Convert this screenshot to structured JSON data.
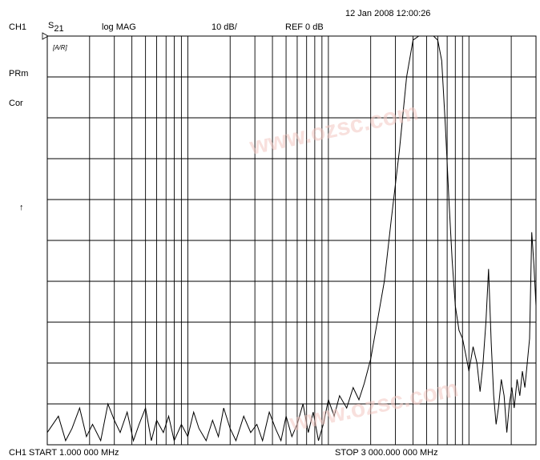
{
  "header": {
    "datetime": "12 Jan 2008  12:00:26",
    "channel": "CH1",
    "param": "S",
    "param_sub": "21",
    "format": "log MAG",
    "scale": "10 dB/",
    "reference": "REF 0 dB"
  },
  "side": {
    "prm": "PRm",
    "cor": "Cor",
    "arrow": "↑",
    "box_marker": "[A/R]"
  },
  "footer": {
    "start": "CH1 START   1.000 000 MHz",
    "stop": "STOP 3 000.000 000 MHz"
  },
  "watermark": {
    "url1": "www.ozsc.com",
    "url2": "www.ozsc.com"
  },
  "colors": {
    "trace": "#000000",
    "grid": "#000000",
    "watermark": "#e8a89e"
  },
  "chart_data": {
    "type": "line",
    "title": "",
    "xlabel": "",
    "ylabel": "",
    "x_scale": "log",
    "x_unit": "MHz",
    "xlim": [
      1,
      3000
    ],
    "ylim": [
      -100,
      0
    ],
    "y_div": 10,
    "grid": true,
    "series": [
      {
        "x": [
          1,
          1.2,
          1.35,
          1.5,
          1.7,
          1.9,
          2.1,
          2.4,
          2.7,
          3.0,
          3.3,
          3.7,
          4.1,
          4.5,
          5.0,
          5.5,
          6.0,
          6.7,
          7.3,
          8.0,
          9.0,
          10,
          11,
          12,
          13.5,
          15,
          16.5,
          18,
          20,
          22,
          25,
          28,
          31,
          34,
          38,
          42,
          46,
          50,
          55,
          60,
          66,
          72,
          78,
          85,
          92,
          100,
          110,
          120,
          135,
          150,
          165,
          180,
          200,
          220,
          250,
          280,
          320,
          360,
          400,
          440,
          480,
          520,
          560,
          600,
          640,
          680,
          720,
          760,
          800,
          850,
          900,
          950,
          1000,
          1070,
          1140,
          1200,
          1260,
          1320,
          1380,
          1440,
          1500,
          1560,
          1620,
          1700,
          1780,
          1860,
          1940,
          2020,
          2100,
          2200,
          2300,
          2400,
          2500,
          2600,
          2700,
          2800,
          2900,
          3000
        ],
        "y": [
          -97,
          -93,
          -99,
          -96,
          -91,
          -98,
          -95,
          -99,
          -90,
          -94,
          -97,
          -92,
          -99,
          -95,
          -91,
          -99,
          -94,
          -97,
          -93,
          -99,
          -95,
          -98,
          -92,
          -96,
          -99,
          -94,
          -98,
          -91,
          -96,
          -99,
          -93,
          -97,
          -95,
          -99,
          -92,
          -96,
          -99,
          -93,
          -98,
          -95,
          -90,
          -97,
          -92,
          -99,
          -95,
          -89,
          -93,
          -88,
          -91,
          -86,
          -89,
          -85,
          -79,
          -71,
          -60,
          -45,
          -28,
          -10,
          -1,
          0,
          0,
          0,
          0,
          -1,
          -6,
          -22,
          -40,
          -55,
          -66,
          -72,
          -74,
          -78,
          -82,
          -76,
          -80,
          -87,
          -80,
          -70,
          -57,
          -75,
          -88,
          -95,
          -91,
          -84,
          -88,
          -97,
          -90,
          -86,
          -91,
          -84,
          -88,
          -82,
          -86,
          -80,
          -74,
          -48,
          -56,
          -66
        ]
      }
    ]
  }
}
